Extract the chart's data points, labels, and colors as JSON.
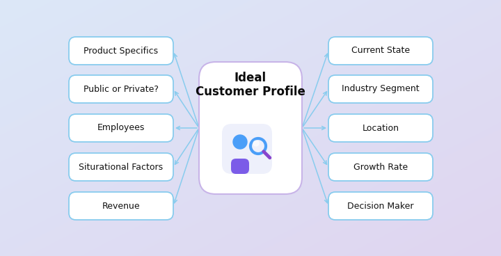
{
  "title_line1": "Ideal",
  "title_line2": "Customer Profile",
  "bg_color_tl": "#dce8f8",
  "bg_color_br": "#e0d5f0",
  "center_box_color": "#ffffff",
  "center_box_border": "#c8b4e8",
  "node_bg": "#ffffff",
  "node_border_top": "#7dd4f0",
  "node_border_bottom": "#c8a8e8",
  "arrow_color": "#88ccee",
  "icon_bg": "#eef0fb",
  "head_color": "#4a9ef8",
  "body_color": "#7b5ce8",
  "mag_color": "#4a9ef8",
  "mag_handle_color": "#8844cc",
  "left_nodes": [
    "Product Specifics",
    "Public or Private?",
    "Employees",
    "Siturational Factors",
    "Revenue"
  ],
  "right_nodes": [
    "Current State",
    "Industry Segment",
    "Location",
    "Growth Rate",
    "Decision Maker"
  ],
  "fig_width": 7.2,
  "fig_height": 3.68,
  "dpi": 100
}
